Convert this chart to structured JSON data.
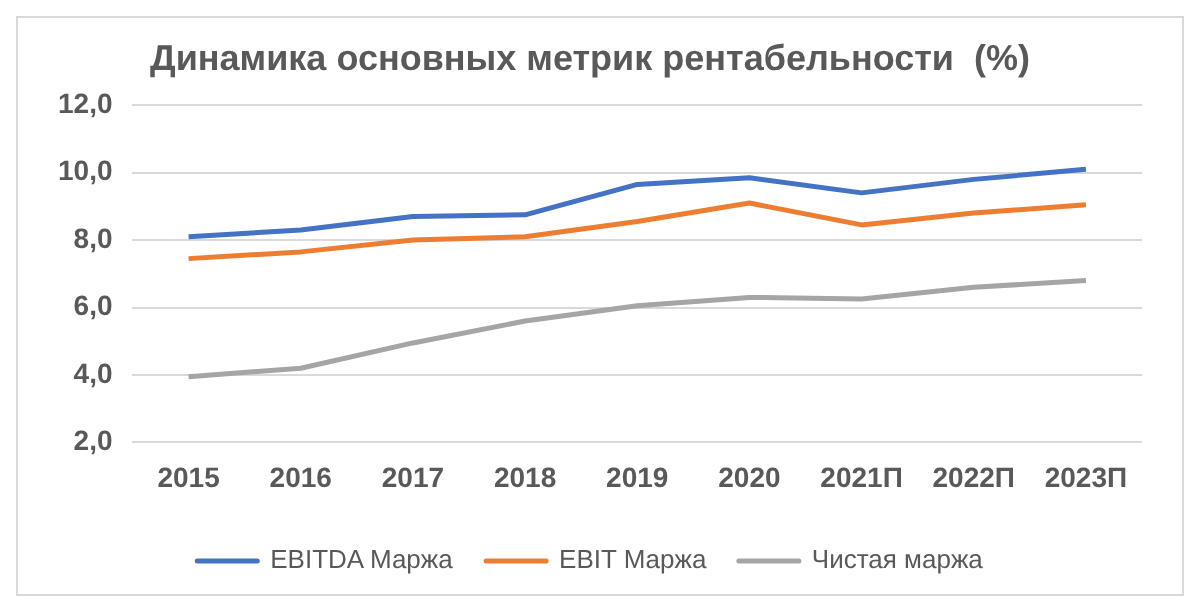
{
  "chart_data": {
    "type": "line",
    "title": "Динамика основных метрик рентабельности  (%)",
    "categories": [
      "2015",
      "2016",
      "2017",
      "2018",
      "2019",
      "2020",
      "2021П",
      "2022П",
      "2023П"
    ],
    "series": [
      {
        "name": "EBITDA Маржа",
        "color": "#4472c4",
        "values": [
          8.1,
          8.3,
          8.7,
          8.75,
          9.65,
          9.85,
          9.4,
          9.8,
          10.1
        ]
      },
      {
        "name": "EBIT Маржа",
        "color": "#ed7d31",
        "values": [
          7.45,
          7.65,
          8.0,
          8.1,
          8.55,
          9.1,
          8.45,
          8.8,
          9.05
        ]
      },
      {
        "name": "Чистая маржа",
        "color": "#a5a5a5",
        "values": [
          3.95,
          4.2,
          4.95,
          5.6,
          6.05,
          6.3,
          6.25,
          6.6,
          6.8
        ]
      }
    ],
    "ylim": [
      2,
      12
    ],
    "yticks": [
      {
        "value": 2,
        "label": "2,0"
      },
      {
        "value": 4,
        "label": "4,0"
      },
      {
        "value": 6,
        "label": "6,0"
      },
      {
        "value": 8,
        "label": "8,0"
      },
      {
        "value": 10,
        "label": "10,0"
      },
      {
        "value": 12,
        "label": "12,0"
      }
    ],
    "grid": "y",
    "legend": "bottom",
    "marker": "none",
    "line_style": "solid"
  }
}
